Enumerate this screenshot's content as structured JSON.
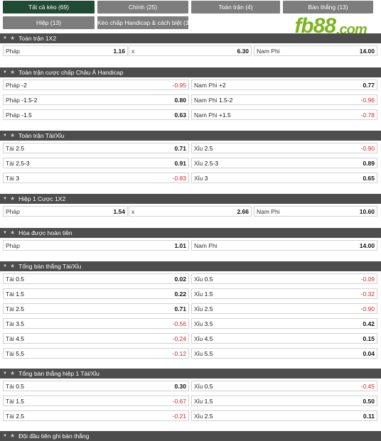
{
  "tabs": [
    {
      "label": "Tất cả kèo (69)",
      "active": true
    },
    {
      "label": "Chính (25)",
      "active": false
    },
    {
      "label": "Toàn trận (4)",
      "active": false
    },
    {
      "label": "Bàn thắng (13)",
      "active": false
    },
    {
      "label": "Hiệp (13)",
      "active": false
    },
    {
      "label": "Kèo chấp Handicap & cách biệt (3)",
      "active": false
    }
  ],
  "logo": {
    "text": "fb88",
    "suffix": ".com",
    "color": "#7ab51d"
  },
  "markets": [
    {
      "title": "Toàn trận 1X2",
      "layout": "three",
      "rows": [
        [
          {
            "label": "Pháp",
            "odd": "1.16"
          },
          {
            "label": "x",
            "odd": "6.30"
          },
          {
            "label": "Nam Phi",
            "odd": "14.00"
          }
        ]
      ]
    },
    {
      "title": "Toàn trận cược chấp Châu Á Handicap",
      "layout": "two",
      "rows": [
        [
          {
            "label": "Pháp",
            "line": "-2",
            "odd": "-0.95"
          },
          {
            "label": "Nam Phi",
            "line": "+2",
            "odd": "0.77"
          }
        ],
        [
          {
            "label": "Pháp",
            "line": "-1.5-2",
            "odd": "0.80"
          },
          {
            "label": "Nam Phi",
            "line": "1.5-2",
            "odd": "-0.96"
          }
        ],
        [
          {
            "label": "Pháp",
            "line": "-1.5",
            "odd": "0.63"
          },
          {
            "label": "Nam Phi",
            "line": "+1.5",
            "odd": "-0.78"
          }
        ]
      ]
    },
    {
      "title": "Toàn trận Tài/Xỉu",
      "layout": "two",
      "rows": [
        [
          {
            "label": "Tài",
            "line": "2.5",
            "odd": "0.71"
          },
          {
            "label": "Xỉu",
            "line": "2.5",
            "odd": "-0.90"
          }
        ],
        [
          {
            "label": "Tài",
            "line": "2.5-3",
            "odd": "0.91"
          },
          {
            "label": "Xỉu",
            "line": "2.5-3",
            "odd": "0.89"
          }
        ],
        [
          {
            "label": "Tài",
            "line": "3",
            "odd": "-0.83"
          },
          {
            "label": "Xỉu",
            "line": "3",
            "odd": "0.65"
          }
        ]
      ]
    },
    {
      "title": "Hiệp 1 Cược 1X2",
      "layout": "three",
      "rows": [
        [
          {
            "label": "Pháp",
            "odd": "1.54"
          },
          {
            "label": "x",
            "odd": "2.66"
          },
          {
            "label": "Nam Phi",
            "odd": "10.60"
          }
        ]
      ]
    },
    {
      "title": "Hòa được hoàn tiền",
      "layout": "two",
      "rows": [
        [
          {
            "label": "Pháp",
            "odd": "1.01"
          },
          {
            "label": "Nam Phi",
            "odd": "14.00"
          }
        ]
      ]
    },
    {
      "title": "Tổng bàn thắng Tài/Xỉu",
      "layout": "two",
      "rows": [
        [
          {
            "label": "Tài",
            "line": "0.5",
            "odd": "0.02"
          },
          {
            "label": "Xỉu",
            "line": "0.5",
            "odd": "-0.09"
          }
        ],
        [
          {
            "label": "Tài",
            "line": "1.5",
            "odd": "0.22"
          },
          {
            "label": "Xỉu",
            "line": "1.5",
            "odd": "-0.32"
          }
        ],
        [
          {
            "label": "Tài",
            "line": "2.5",
            "odd": "0.71"
          },
          {
            "label": "Xỉu",
            "line": "2.5",
            "odd": "-0.90"
          }
        ],
        [
          {
            "label": "Tài",
            "line": "3.5",
            "odd": "-0.56"
          },
          {
            "label": "Xỉu",
            "line": "3.5",
            "odd": "0.42"
          }
        ],
        [
          {
            "label": "Tài",
            "line": "4.5",
            "odd": "-0.24"
          },
          {
            "label": "Xỉu",
            "line": "4.5",
            "odd": "0.15"
          }
        ],
        [
          {
            "label": "Tài",
            "line": "5.5",
            "odd": "-0.12"
          },
          {
            "label": "Xỉu",
            "line": "5.5",
            "odd": "0.04"
          }
        ]
      ]
    },
    {
      "title": "Tổng bàn thắng hiệp 1 Tài/Xỉu",
      "layout": "two",
      "rows": [
        [
          {
            "label": "Tài",
            "line": "0.5",
            "odd": "0.30"
          },
          {
            "label": "Xỉu",
            "line": "0.5",
            "odd": "-0.45"
          }
        ],
        [
          {
            "label": "Tài",
            "line": "1.5",
            "odd": "-0.67"
          },
          {
            "label": "Xỉu",
            "line": "1.5",
            "odd": "0.50"
          }
        ],
        [
          {
            "label": "Tài",
            "line": "2.5",
            "odd": "-0.21"
          },
          {
            "label": "Xỉu",
            "line": "2.5",
            "odd": "0.11"
          }
        ]
      ]
    },
    {
      "title": "Đội đầu tiên ghi bàn thắng",
      "layout": "two",
      "rows": []
    }
  ]
}
